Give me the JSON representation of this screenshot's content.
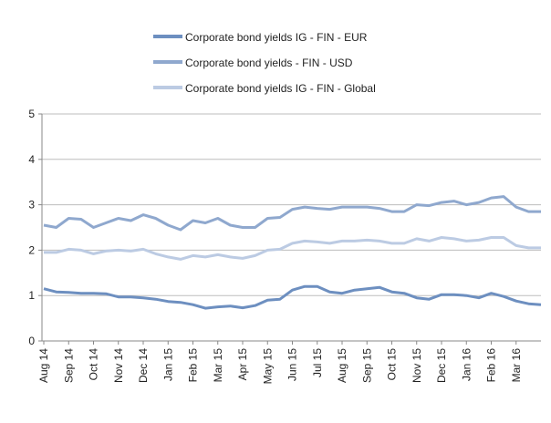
{
  "chart_data": {
    "type": "line",
    "categories": [
      "Aug 14",
      null,
      "Sep 14",
      null,
      "Oct 14",
      null,
      "Nov 14",
      null,
      "Dec 14",
      null,
      "Jan 15",
      null,
      "Feb 15",
      null,
      "Mar 15",
      null,
      "Apr 15",
      null,
      "May 15",
      null,
      "Jun 15",
      null,
      "Jul 15",
      null,
      "Aug 15",
      null,
      "Sep 15",
      null,
      "Oct 15",
      null,
      "Nov 15",
      null,
      "Dec 15",
      null,
      "Jan 16",
      null,
      "Feb 16",
      null,
      "Mar 16",
      null,
      null
    ],
    "series": [
      {
        "name": "Corporate bond yields IG - FIN - EUR",
        "color": "#6d8fc0",
        "values": [
          1.15,
          1.08,
          1.07,
          1.05,
          1.05,
          1.04,
          0.97,
          0.97,
          0.95,
          0.92,
          0.87,
          0.85,
          0.8,
          0.72,
          0.75,
          0.77,
          0.73,
          0.78,
          0.9,
          0.92,
          1.12,
          1.2,
          1.2,
          1.08,
          1.05,
          1.12,
          1.15,
          1.18,
          1.08,
          1.05,
          0.95,
          0.92,
          1.02,
          1.02,
          1.0,
          0.95,
          1.05,
          0.98,
          0.88,
          0.82,
          0.8
        ]
      },
      {
        "name": "Corporate bond yields - FIN - USD",
        "color": "#8fa8ce",
        "values": [
          2.55,
          2.5,
          2.7,
          2.68,
          2.5,
          2.6,
          2.7,
          2.65,
          2.78,
          2.7,
          2.55,
          2.45,
          2.65,
          2.6,
          2.7,
          2.55,
          2.5,
          2.5,
          2.7,
          2.72,
          2.9,
          2.95,
          2.92,
          2.9,
          2.95,
          2.95,
          2.95,
          2.92,
          2.85,
          2.85,
          3.0,
          2.98,
          3.05,
          3.08,
          3.0,
          3.05,
          3.15,
          3.18,
          2.95,
          2.85,
          2.85
        ]
      },
      {
        "name": "Corporate bond yields IG - FIN - Global",
        "color": "#bccbe3",
        "values": [
          1.95,
          1.95,
          2.02,
          2.0,
          1.92,
          1.98,
          2.0,
          1.98,
          2.02,
          1.92,
          1.85,
          1.8,
          1.88,
          1.85,
          1.9,
          1.85,
          1.82,
          1.88,
          2.0,
          2.02,
          2.15,
          2.2,
          2.18,
          2.15,
          2.2,
          2.2,
          2.22,
          2.2,
          2.15,
          2.15,
          2.25,
          2.2,
          2.28,
          2.25,
          2.2,
          2.22,
          2.28,
          2.28,
          2.1,
          2.05,
          2.05
        ]
      }
    ],
    "ylim": [
      0,
      5
    ],
    "yticks": [
      0,
      1,
      2,
      3,
      4,
      5
    ],
    "grid": true,
    "legend": "top"
  }
}
